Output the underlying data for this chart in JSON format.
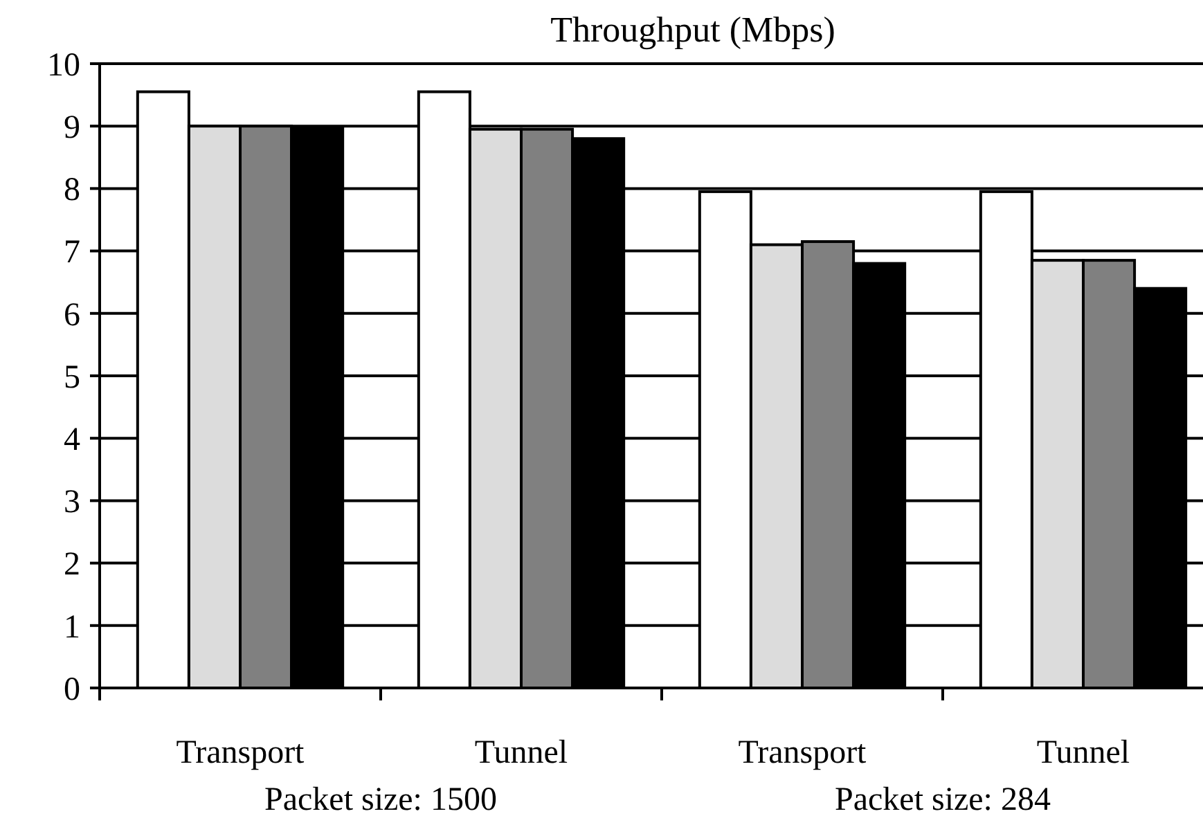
{
  "chart_data": {
    "type": "bar",
    "title": "Throughput (Mbps)",
    "categories": [
      "Transport",
      "Tunnel",
      "Transport",
      "Tunnel"
    ],
    "series": [
      {
        "color": "#ffffff",
        "values": [
          9.55,
          9.55,
          7.95,
          7.95
        ]
      },
      {
        "color": "#dcdcdc",
        "values": [
          9.0,
          8.95,
          7.1,
          6.85
        ]
      },
      {
        "color": "#808080",
        "values": [
          9.0,
          8.95,
          7.15,
          6.85
        ]
      },
      {
        "color": "#000000",
        "values": [
          8.98,
          8.8,
          6.8,
          6.4
        ]
      }
    ],
    "ylim": [
      0,
      10
    ],
    "yticks": [
      0,
      1,
      2,
      3,
      4,
      5,
      6,
      7,
      8,
      9,
      10
    ],
    "grid": "y",
    "annotations": [
      "Packet size: 1500",
      "Packet size: 284"
    ]
  }
}
